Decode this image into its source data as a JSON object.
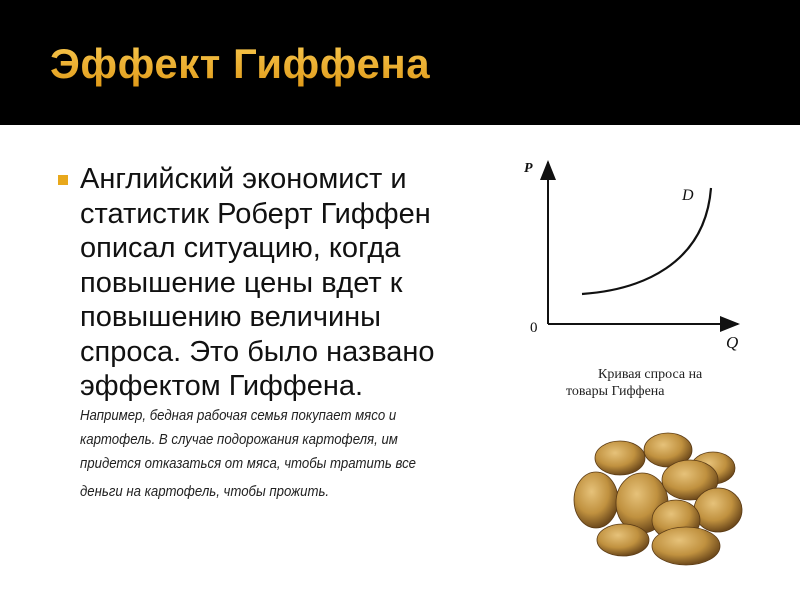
{
  "slide": {
    "title": "Эффект Гиффена",
    "bullet_lines": [
      "Английский экономист и",
      "статистик Роберт Гиффен",
      "описал ситуацию, когда",
      "повышение цены вдет к",
      "повышению величины",
      "спроса. Это было названо",
      "эффектом Гиффена."
    ],
    "note_lines": [
      "Например, бедная рабочая семья покупает мясо и",
      "картофель. В случае подорожания картофеля, им",
      "придется отказаться от мяса, чтобы тратить все",
      "деньги на картофель, чтобы прожить."
    ],
    "graph": {
      "y_axis_label": "P",
      "x_axis_label": "Q",
      "origin_label": "0",
      "curve_label": "D",
      "caption_lines": [
        "Кривая спроса на",
        "товары Гиффена"
      ]
    },
    "image": "potatoes",
    "colors": {
      "header": "#000000",
      "title": "#f2b233",
      "bullet": "#e8a81c"
    }
  }
}
